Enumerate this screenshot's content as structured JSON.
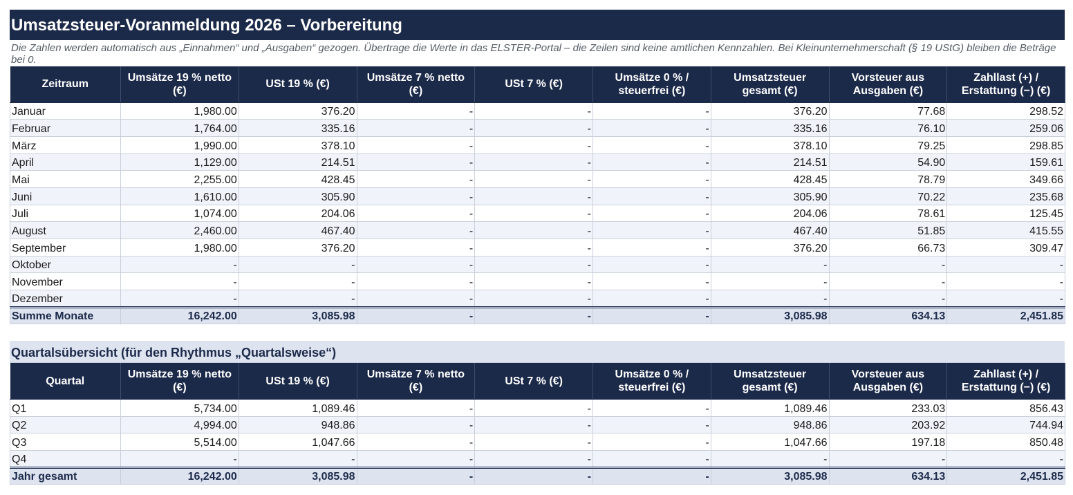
{
  "title": "Umsatzsteuer-Voranmeldung 2026 – Vorbereitung",
  "note": "Die Zahlen werden automatisch aus „Einnahmen“ und „Ausgaben“ gezogen. Übertrage die Werte in das ELSTER-Portal – die Zeilen sind keine amtlichen Kennzahlen. Bei Kleinunternehmerschaft (§ 19 UStG) bleiben die Beträge bei 0.",
  "monthly": {
    "headers": [
      "Zeitraum",
      "Umsätze 19 % netto (€)",
      "USt 19 % (€)",
      "Umsätze 7 % netto (€)",
      "USt 7 % (€)",
      "Umsätze 0 % / steuerfrei (€)",
      "Umsatzsteuer gesamt (€)",
      "Vorsteuer aus Ausgaben (€)",
      "Zahllast (+) / Erstattung (−) (€)"
    ],
    "rows": [
      [
        "Januar",
        "1,980.00",
        "376.20",
        "-",
        "-",
        "-",
        "376.20",
        "77.68",
        "298.52"
      ],
      [
        "Februar",
        "1,764.00",
        "335.16",
        "-",
        "-",
        "-",
        "335.16",
        "76.10",
        "259.06"
      ],
      [
        "März",
        "1,990.00",
        "378.10",
        "-",
        "-",
        "-",
        "378.10",
        "79.25",
        "298.85"
      ],
      [
        "April",
        "1,129.00",
        "214.51",
        "-",
        "-",
        "-",
        "214.51",
        "54.90",
        "159.61"
      ],
      [
        "Mai",
        "2,255.00",
        "428.45",
        "-",
        "-",
        "-",
        "428.45",
        "78.79",
        "349.66"
      ],
      [
        "Juni",
        "1,610.00",
        "305.90",
        "-",
        "-",
        "-",
        "305.90",
        "70.22",
        "235.68"
      ],
      [
        "Juli",
        "1,074.00",
        "204.06",
        "-",
        "-",
        "-",
        "204.06",
        "78.61",
        "125.45"
      ],
      [
        "August",
        "2,460.00",
        "467.40",
        "-",
        "-",
        "-",
        "467.40",
        "51.85",
        "415.55"
      ],
      [
        "September",
        "1,980.00",
        "376.20",
        "-",
        "-",
        "-",
        "376.20",
        "66.73",
        "309.47"
      ],
      [
        "Oktober",
        "-",
        "-",
        "-",
        "-",
        "-",
        "-",
        "-",
        "-"
      ],
      [
        "November",
        "-",
        "-",
        "-",
        "-",
        "-",
        "-",
        "-",
        "-"
      ],
      [
        "Dezember",
        "-",
        "-",
        "-",
        "-",
        "-",
        "-",
        "-",
        "-"
      ]
    ],
    "total": [
      "Summe Monate",
      "16,242.00",
      "3,085.98",
      "-",
      "-",
      "-",
      "3,085.98",
      "634.13",
      "2,451.85"
    ]
  },
  "quarterly": {
    "section_title": "Quartalsübersicht (für den Rhythmus „Quartalsweise“)",
    "headers": [
      "Quartal",
      "Umsätze 19 % netto (€)",
      "USt 19 % (€)",
      "Umsätze 7 % netto (€)",
      "USt 7 % (€)",
      "Umsätze 0 % / steuerfrei (€)",
      "Umsatzsteuer gesamt (€)",
      "Vorsteuer aus Ausgaben (€)",
      "Zahllast (+) / Erstattung (−) (€)"
    ],
    "rows": [
      [
        "Q1",
        "5,734.00",
        "1,089.46",
        "-",
        "-",
        "-",
        "1,089.46",
        "233.03",
        "856.43"
      ],
      [
        "Q2",
        "4,994.00",
        "948.86",
        "-",
        "-",
        "-",
        "948.86",
        "203.92",
        "744.94"
      ],
      [
        "Q3",
        "5,514.00",
        "1,047.66",
        "-",
        "-",
        "-",
        "1,047.66",
        "197.18",
        "850.48"
      ],
      [
        "Q4",
        "-",
        "-",
        "-",
        "-",
        "-",
        "-",
        "-",
        "-"
      ]
    ],
    "total": [
      "Jahr gesamt",
      "16,242.00",
      "3,085.98",
      "-",
      "-",
      "-",
      "3,085.98",
      "634.13",
      "2,451.85"
    ]
  }
}
